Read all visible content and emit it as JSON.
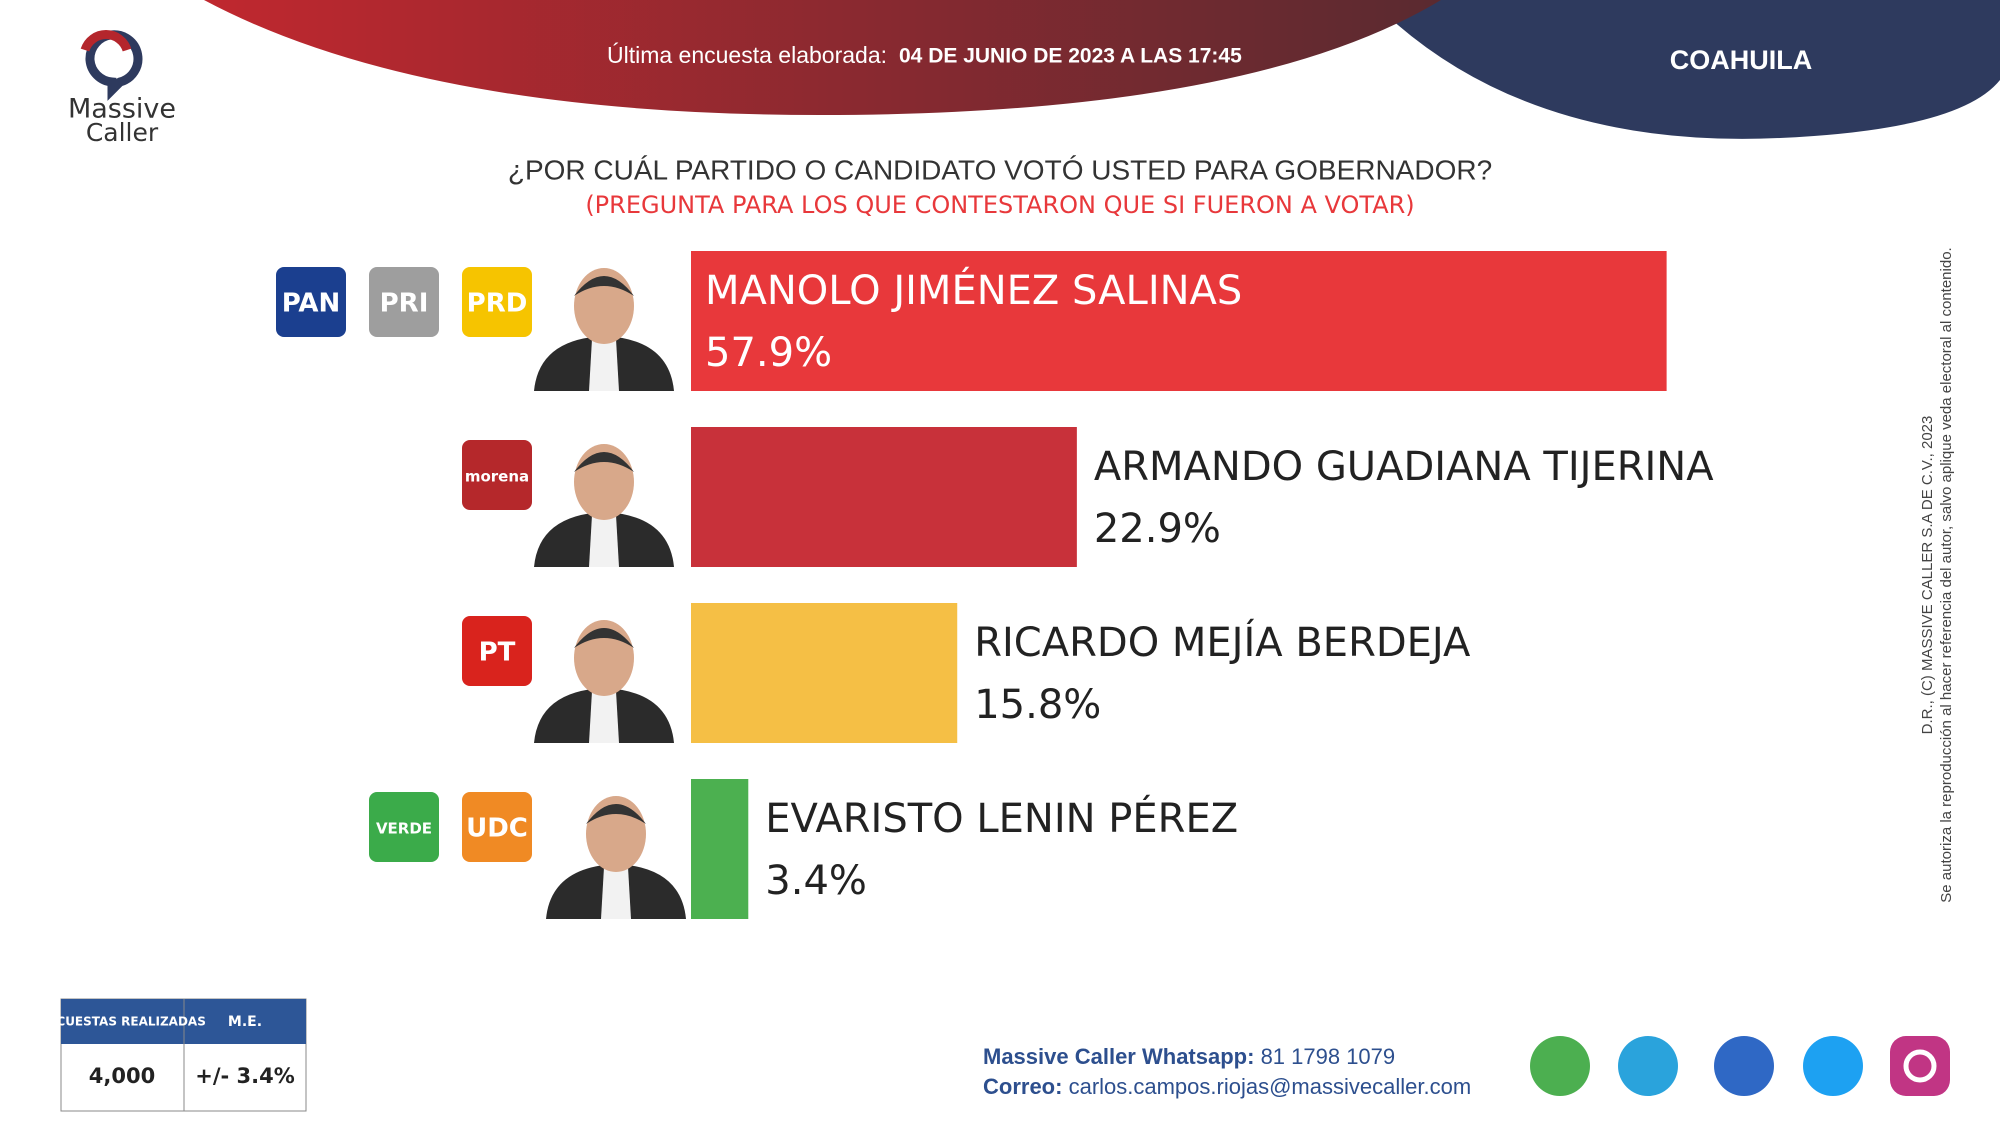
{
  "header": {
    "survey_label": "Última encuesta elaborada:",
    "survey_date": "04 DE JUNIO DE 2023 A LAS 17:45",
    "region": "COAHUILA"
  },
  "logo": {
    "line1": "Massive",
    "line2": "Caller"
  },
  "chart_data": {
    "type": "bar",
    "orientation": "horizontal",
    "title": "¿POR CUÁL PARTIDO O CANDIDATO VOTÓ USTED PARA GOBERNADOR?",
    "subtitle": "(PREGUNTA PARA LOS QUE CONTESTARON QUE SI FUERON A VOTAR)",
    "categories": [
      "MANOLO JIMÉNEZ SALINAS",
      "ARMANDO GUADIANA TIJERINA",
      "RICARDO MEJÍA BERDEJA",
      "EVARISTO LENIN PÉREZ"
    ],
    "values": [
      57.9,
      22.9,
      15.8,
      3.4
    ],
    "value_labels": [
      "57.9%",
      "22.9%",
      "15.8%",
      "3.4%"
    ],
    "colors": [
      "#e8383b",
      "#c8313a",
      "#f5bf45",
      "#4cb050"
    ]
  },
  "parties": [
    [
      "PAN",
      "PRI",
      "PRD"
    ],
    [
      "morena"
    ],
    [
      "PT"
    ],
    [
      "VERDE",
      "UDC"
    ]
  ],
  "sample_table": {
    "headers": [
      "ENCUESTAS REALIZADAS",
      "M.E."
    ],
    "row": [
      "4,000",
      "+/- 3.4%"
    ]
  },
  "contact": {
    "whatsapp_label": "Massive Caller Whatsapp:",
    "whatsapp": "81 1798 1079",
    "email_label": "Correo:",
    "email": "carlos.campos.riojas@massivecaller.com"
  },
  "copyright": [
    "D.R., (C) MASSIVE CALLER S.A DE C.V., 2023",
    "Se autoriza la reproducción al hacer referencia del autor, salvo aplique veda electoral al contenido."
  ]
}
